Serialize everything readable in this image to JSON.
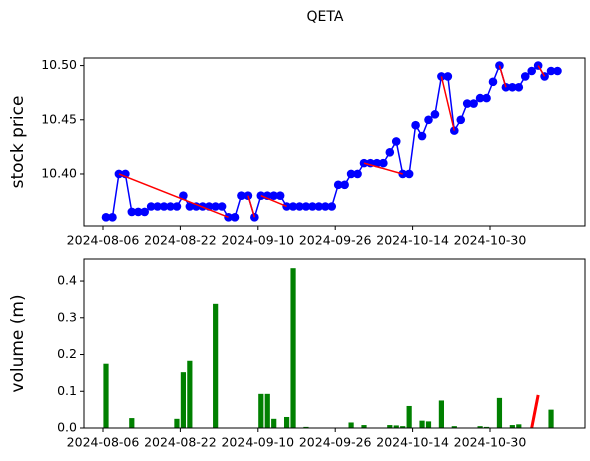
{
  "chart_data": [
    {
      "type": "line",
      "title": "QETA",
      "ylabel": "stock price",
      "ylabel_color": "#0000ff",
      "categories": [
        "2024-08-06",
        null,
        null,
        null,
        null,
        null,
        null,
        null,
        null,
        null,
        null,
        null,
        "2024-08-22",
        null,
        null,
        null,
        null,
        null,
        null,
        null,
        null,
        null,
        null,
        null,
        "2024-09-10",
        null,
        null,
        null,
        null,
        null,
        null,
        null,
        null,
        null,
        null,
        null,
        "2024-09-26",
        null,
        null,
        null,
        null,
        null,
        null,
        null,
        null,
        null,
        null,
        null,
        "2024-10-14",
        null,
        null,
        null,
        null,
        null,
        null,
        null,
        null,
        null,
        null,
        null,
        "2024-10-30",
        null,
        null,
        null,
        null,
        null,
        null,
        null,
        null,
        null,
        null
      ],
      "ylim": [
        10.352,
        10.507
      ],
      "yticks": [
        {
          "value": 10.4,
          "label": "10.40"
        },
        10.45,
        {
          "value": 10.5,
          "label": "10.50"
        }
      ],
      "series": [
        {
          "color": "#0000ff",
          "markers": true,
          "connect": "all",
          "values": [
            10.36,
            10.36,
            10.4,
            10.4,
            10.365,
            10.365,
            10.365,
            10.37,
            10.37,
            10.37,
            10.37,
            10.37,
            10.38,
            10.37,
            10.37,
            10.37,
            10.37,
            10.37,
            10.37,
            10.36,
            10.36,
            10.38,
            10.38,
            10.36,
            10.38,
            10.38,
            10.38,
            10.38,
            10.37,
            10.37,
            10.37,
            10.37,
            10.37,
            10.37,
            10.37,
            10.37,
            10.39,
            10.39,
            10.4,
            10.4,
            10.41,
            10.41,
            10.41,
            10.41,
            10.42,
            10.43,
            10.4,
            10.4,
            10.445,
            10.435,
            10.45,
            10.455,
            10.49,
            10.49,
            10.44,
            10.45,
            10.465,
            10.465,
            10.47,
            10.47,
            10.485,
            10.5,
            10.48,
            10.48,
            10.48,
            10.49,
            10.495,
            10.5,
            10.49,
            10.495,
            10.495
          ]
        },
        {
          "color": "#ff0000",
          "markers": false,
          "connect": "pairs",
          "values": [
            null,
            null,
            10.4,
            null,
            null,
            null,
            null,
            null,
            null,
            null,
            null,
            null,
            null,
            null,
            null,
            null,
            null,
            null,
            null,
            10.36,
            null,
            null,
            10.38,
            10.36,
            10.38,
            null,
            null,
            null,
            10.37,
            null,
            null,
            null,
            null,
            null,
            null,
            null,
            null,
            null,
            null,
            null,
            10.41,
            null,
            null,
            null,
            null,
            null,
            10.4,
            null,
            null,
            null,
            null,
            null,
            10.49,
            null,
            10.44,
            null,
            null,
            null,
            null,
            null,
            null,
            10.5,
            10.48,
            null,
            null,
            null,
            null,
            10.5,
            10.49,
            null,
            null
          ]
        }
      ]
    },
    {
      "type": "bar",
      "ylabel": "volume (m)",
      "ylabel_color": "#008000",
      "categories": [
        "2024-08-06",
        null,
        null,
        null,
        null,
        null,
        null,
        null,
        null,
        null,
        null,
        null,
        "2024-08-22",
        null,
        null,
        null,
        null,
        null,
        null,
        null,
        null,
        null,
        null,
        null,
        "2024-09-10",
        null,
        null,
        null,
        null,
        null,
        null,
        null,
        null,
        null,
        null,
        null,
        "2024-09-26",
        null,
        null,
        null,
        null,
        null,
        null,
        null,
        null,
        null,
        null,
        null,
        "2024-10-14",
        null,
        null,
        null,
        null,
        null,
        null,
        null,
        null,
        null,
        null,
        null,
        "2024-10-30",
        null,
        null,
        null,
        null,
        null,
        null,
        null,
        null,
        null,
        null
      ],
      "ylim": [
        0,
        0.46
      ],
      "yticks": [
        {
          "value": 0,
          "label": "0.0"
        },
        0.1,
        0.2,
        0.3,
        0.4
      ],
      "series": [
        {
          "color": "#008000",
          "values": [
            0.175,
            0,
            0,
            0,
            0.027,
            0,
            0,
            0,
            0,
            0,
            0,
            0.025,
            0.152,
            0.183,
            0,
            0,
            0,
            0.338,
            0,
            0,
            0,
            0,
            0,
            0,
            0.093,
            0.093,
            0.025,
            0,
            0.03,
            0.435,
            0,
            0.003,
            0,
            0,
            0,
            0,
            0,
            0,
            0.015,
            0,
            0.008,
            0,
            0,
            0,
            0.008,
            0.007,
            0.005,
            0.06,
            0,
            0.02,
            0.018,
            0,
            0.075,
            0,
            0.005,
            0,
            0,
            0,
            0.005,
            0.003,
            0,
            0.082,
            0,
            0.008,
            0.01,
            0,
            0,
            0,
            0,
            0.05,
            0
          ]
        },
        {
          "color": "#ff0000",
          "connect": "pairs",
          "values": [
            null,
            null,
            null,
            null,
            null,
            null,
            null,
            null,
            null,
            null,
            null,
            null,
            null,
            null,
            null,
            null,
            null,
            null,
            null,
            null,
            null,
            null,
            null,
            null,
            null,
            null,
            null,
            null,
            null,
            null,
            null,
            null,
            null,
            null,
            null,
            null,
            null,
            null,
            null,
            null,
            null,
            null,
            null,
            null,
            null,
            null,
            null,
            null,
            null,
            null,
            null,
            null,
            null,
            null,
            null,
            null,
            null,
            null,
            null,
            null,
            null,
            null,
            null,
            null,
            null,
            null,
            0,
            0.09,
            null,
            null,
            null
          ]
        }
      ]
    }
  ]
}
